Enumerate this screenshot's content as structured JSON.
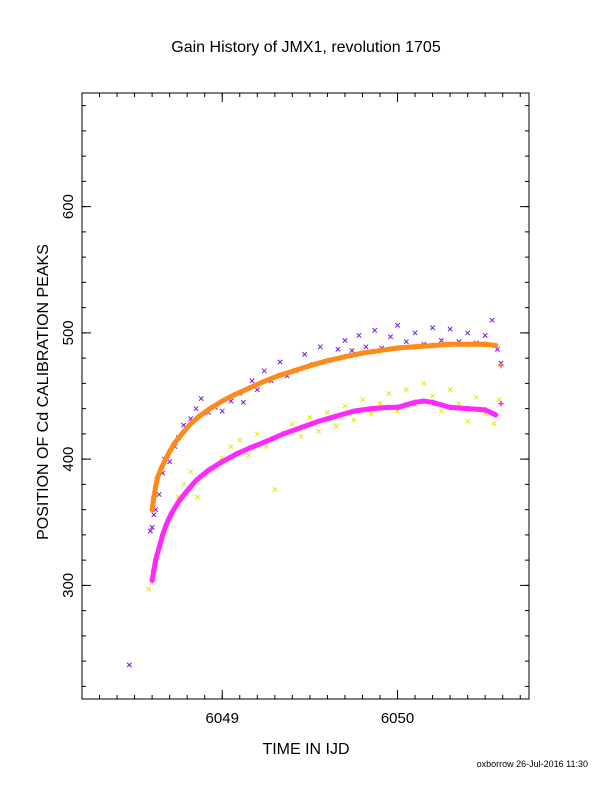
{
  "chart_data": {
    "type": "scatter",
    "title": "Gain History of JMX1, revolution 1705",
    "xlabel": "TIME IN IJD",
    "ylabel": "POSITION OF Cd CALIBRATION PEAKS",
    "xlim": [
      6048.2,
      6050.75
    ],
    "ylim": [
      210,
      690
    ],
    "x_ticks": [
      6049,
      6050
    ],
    "y_ticks": [
      300,
      400,
      500,
      600
    ],
    "grid": false,
    "legend": "none",
    "footer": "oxborrow 26-Jul-2016 11:30",
    "series": [
      {
        "color": "#7a18e8",
        "marker": "x",
        "points": [
          [
            6048.47,
            237
          ],
          [
            6048.59,
            343
          ],
          [
            6048.6,
            346
          ],
          [
            6048.61,
            356
          ],
          [
            6048.62,
            360
          ],
          [
            6048.64,
            372
          ],
          [
            6048.66,
            389
          ],
          [
            6048.67,
            400
          ],
          [
            6048.7,
            398
          ],
          [
            6048.73,
            410
          ],
          [
            6048.75,
            417
          ],
          [
            6048.78,
            427
          ],
          [
            6048.82,
            432
          ],
          [
            6048.85,
            440
          ],
          [
            6048.88,
            448
          ],
          [
            6048.92,
            437
          ],
          [
            6048.96,
            441
          ],
          [
            6049.0,
            438
          ],
          [
            6049.05,
            446
          ],
          [
            6049.1,
            452
          ],
          [
            6049.12,
            445
          ],
          [
            6049.17,
            462
          ],
          [
            6049.2,
            455
          ],
          [
            6049.24,
            470
          ],
          [
            6049.28,
            462
          ],
          [
            6049.33,
            477
          ],
          [
            6049.37,
            466
          ],
          [
            6049.42,
            470
          ],
          [
            6049.47,
            483
          ],
          [
            6049.52,
            475
          ],
          [
            6049.56,
            489
          ],
          [
            6049.61,
            478
          ],
          [
            6049.66,
            487
          ],
          [
            6049.7,
            494
          ],
          [
            6049.74,
            486
          ],
          [
            6049.78,
            498
          ],
          [
            6049.82,
            489
          ],
          [
            6049.87,
            502
          ],
          [
            6049.91,
            488
          ],
          [
            6049.96,
            497
          ],
          [
            6050.0,
            506
          ],
          [
            6050.05,
            493
          ],
          [
            6050.1,
            500
          ],
          [
            6050.15,
            491
          ],
          [
            6050.2,
            504
          ],
          [
            6050.25,
            494
          ],
          [
            6050.3,
            503
          ],
          [
            6050.35,
            493
          ],
          [
            6050.4,
            500
          ],
          [
            6050.45,
            492
          ],
          [
            6050.5,
            498
          ],
          [
            6050.54,
            510
          ],
          [
            6050.57,
            487
          ],
          [
            6050.59,
            476
          ]
        ]
      },
      {
        "color": "#e8e800",
        "marker": "x",
        "points": [
          [
            6048.58,
            297
          ],
          [
            6048.6,
            302
          ],
          [
            6048.62,
            318
          ],
          [
            6048.65,
            334
          ],
          [
            6048.68,
            346
          ],
          [
            6048.72,
            356
          ],
          [
            6048.75,
            370
          ],
          [
            6048.78,
            380
          ],
          [
            6048.82,
            390
          ],
          [
            6048.86,
            370
          ],
          [
            6048.9,
            387
          ],
          [
            6048.95,
            392
          ],
          [
            6049.0,
            401
          ],
          [
            6049.05,
            410
          ],
          [
            6049.1,
            415
          ],
          [
            6049.15,
            403
          ],
          [
            6049.2,
            420
          ],
          [
            6049.25,
            410
          ],
          [
            6049.3,
            376
          ],
          [
            6049.35,
            421
          ],
          [
            6049.4,
            428
          ],
          [
            6049.45,
            418
          ],
          [
            6049.5,
            433
          ],
          [
            6049.55,
            422
          ],
          [
            6049.6,
            437
          ],
          [
            6049.65,
            426
          ],
          [
            6049.7,
            442
          ],
          [
            6049.75,
            431
          ],
          [
            6049.8,
            447
          ],
          [
            6049.85,
            436
          ],
          [
            6049.9,
            444
          ],
          [
            6049.95,
            452
          ],
          [
            6050.0,
            438
          ],
          [
            6050.05,
            455
          ],
          [
            6050.1,
            443
          ],
          [
            6050.15,
            460
          ],
          [
            6050.2,
            450
          ],
          [
            6050.25,
            438
          ],
          [
            6050.3,
            455
          ],
          [
            6050.35,
            444
          ],
          [
            6050.4,
            430
          ],
          [
            6050.45,
            449
          ],
          [
            6050.5,
            436
          ],
          [
            6050.55,
            428
          ],
          [
            6050.58,
            447
          ]
        ]
      },
      {
        "color": "#ff8a1c",
        "marker": "+",
        "points": [
          [
            6048.6,
            360
          ],
          [
            6048.61,
            370
          ],
          [
            6048.62,
            378
          ],
          [
            6048.63,
            385
          ],
          [
            6048.65,
            392
          ],
          [
            6048.67,
            398
          ],
          [
            6048.7,
            406
          ],
          [
            6048.73,
            413
          ],
          [
            6048.77,
            420
          ],
          [
            6048.82,
            428
          ],
          [
            6048.87,
            434
          ],
          [
            6048.93,
            440
          ],
          [
            6049.0,
            446
          ],
          [
            6049.07,
            451
          ],
          [
            6049.15,
            456
          ],
          [
            6049.23,
            461
          ],
          [
            6049.32,
            466
          ],
          [
            6049.41,
            470
          ],
          [
            6049.5,
            474
          ],
          [
            6049.6,
            478
          ],
          [
            6049.7,
            481
          ],
          [
            6049.8,
            484
          ],
          [
            6049.9,
            486
          ],
          [
            6050.0,
            488
          ],
          [
            6050.1,
            489
          ],
          [
            6050.2,
            490
          ],
          [
            6050.3,
            491
          ],
          [
            6050.4,
            491
          ],
          [
            6050.5,
            491
          ],
          [
            6050.56,
            490
          ],
          [
            6050.59,
            474
          ]
        ]
      },
      {
        "color": "#ff28ff",
        "marker": "+",
        "points": [
          [
            6048.6,
            304
          ],
          [
            6048.61,
            312
          ],
          [
            6048.62,
            320
          ],
          [
            6048.64,
            330
          ],
          [
            6048.66,
            340
          ],
          [
            6048.68,
            348
          ],
          [
            6048.71,
            357
          ],
          [
            6048.75,
            366
          ],
          [
            6048.8,
            375
          ],
          [
            6048.85,
            383
          ],
          [
            6048.92,
            391
          ],
          [
            6049.0,
            398
          ],
          [
            6049.08,
            404
          ],
          [
            6049.16,
            409
          ],
          [
            6049.25,
            414
          ],
          [
            6049.35,
            420
          ],
          [
            6049.45,
            425
          ],
          [
            6049.55,
            430
          ],
          [
            6049.65,
            434
          ],
          [
            6049.75,
            438
          ],
          [
            6049.85,
            440
          ],
          [
            6049.95,
            441
          ],
          [
            6050.0,
            441
          ],
          [
            6050.05,
            443
          ],
          [
            6050.1,
            445
          ],
          [
            6050.15,
            446
          ],
          [
            6050.2,
            445
          ],
          [
            6050.25,
            443
          ],
          [
            6050.3,
            441
          ],
          [
            6050.4,
            440
          ],
          [
            6050.5,
            439
          ],
          [
            6050.56,
            435
          ],
          [
            6050.59,
            444
          ]
        ]
      }
    ]
  }
}
